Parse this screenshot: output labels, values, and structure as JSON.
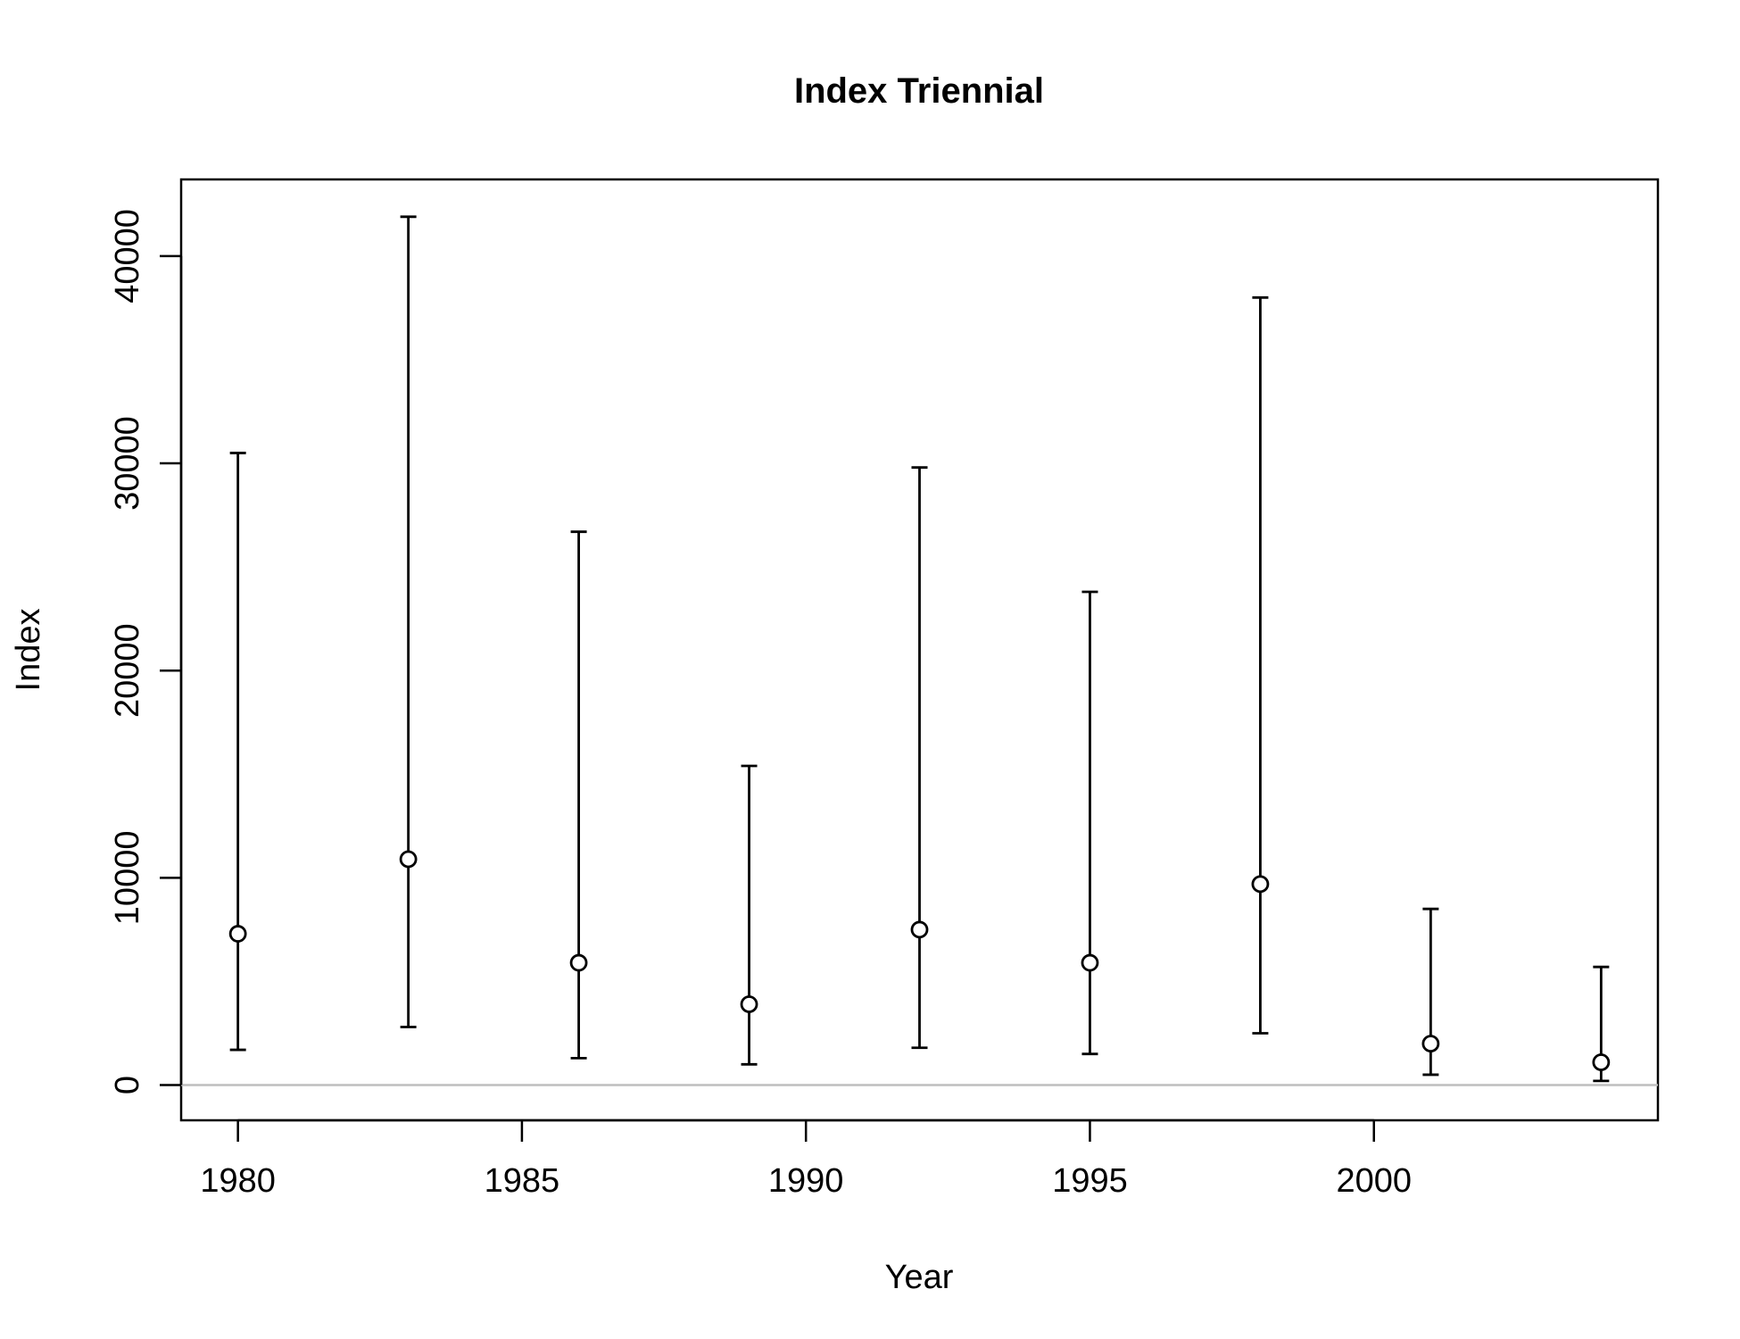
{
  "chart_data": {
    "type": "scatter",
    "title": "Index Triennial",
    "xlabel": "Year",
    "ylabel": "Index",
    "xlim": [
      1979,
      2005
    ],
    "ylim": [
      -1700,
      43700
    ],
    "x_ticks": [
      1980,
      1985,
      1990,
      1995,
      2000
    ],
    "y_ticks": [
      0,
      10000,
      20000,
      30000,
      40000
    ],
    "reference_line": {
      "y": 0,
      "color": "#bebebe"
    },
    "point_color": "#000000",
    "points": [
      {
        "x": 1980,
        "y": 7300,
        "lower": 1700,
        "upper": 30500
      },
      {
        "x": 1983,
        "y": 10900,
        "lower": 2800,
        "upper": 41900
      },
      {
        "x": 1986,
        "y": 5900,
        "lower": 1300,
        "upper": 26700
      },
      {
        "x": 1989,
        "y": 3900,
        "lower": 1000,
        "upper": 15400
      },
      {
        "x": 1992,
        "y": 7500,
        "lower": 1800,
        "upper": 29800
      },
      {
        "x": 1995,
        "y": 5900,
        "lower": 1500,
        "upper": 23800
      },
      {
        "x": 1998,
        "y": 9700,
        "lower": 2500,
        "upper": 38000
      },
      {
        "x": 2001,
        "y": 2000,
        "lower": 500,
        "upper": 8500
      },
      {
        "x": 2004,
        "y": 1100,
        "lower": 200,
        "upper": 5700
      }
    ]
  }
}
